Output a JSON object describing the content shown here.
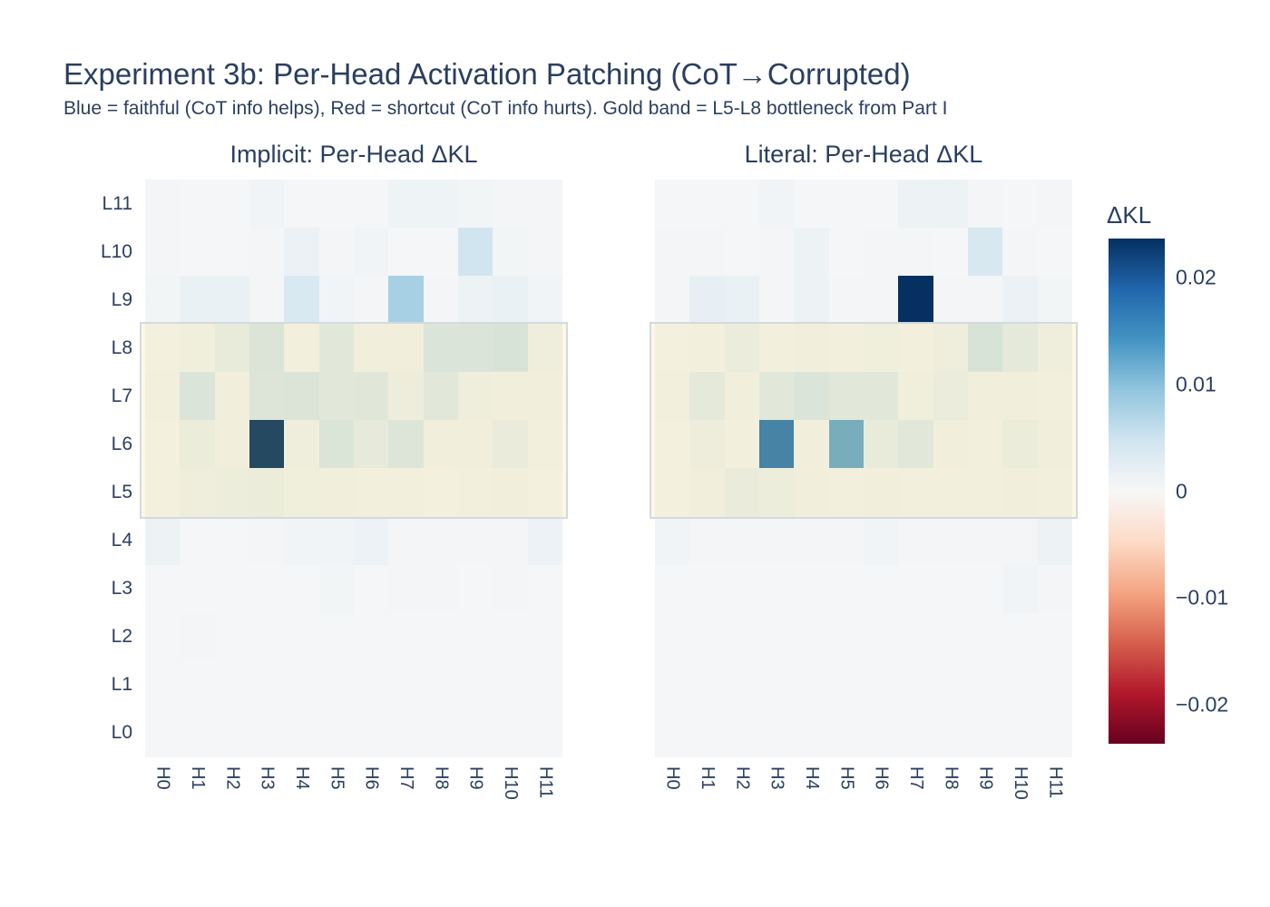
{
  "title": "Experiment 3b: Per-Head Activation Patching (CoT→Corrupted)",
  "subtitle": "Blue = faithful (CoT info helps), Red = shortcut (CoT info hurts). Gold band = L5-L8 bottleneck from Part I",
  "colors": {
    "text": "#2a3f5f",
    "background": "#ffffff",
    "gold_band_fill": "rgba(231,200,44,0.13)",
    "gold_band_border": "#d3d9e1",
    "colorscale_max_blue": "#053061",
    "colorscale_min_red": "#67001f"
  },
  "chart_data": {
    "type": "heatmap",
    "x_labels": [
      "H0",
      "H1",
      "H2",
      "H3",
      "H4",
      "H5",
      "H6",
      "H7",
      "H8",
      "H9",
      "H10",
      "H11"
    ],
    "y_labels_top_to_bottom": [
      "L11",
      "L10",
      "L9",
      "L8",
      "L7",
      "L6",
      "L5",
      "L4",
      "L3",
      "L2",
      "L1",
      "L0"
    ],
    "colorscale": "RdBu (positive = blue, negative = red)",
    "zmin": -0.0237,
    "zmax": 0.0237,
    "gold_band": {
      "rows": "L5-L8",
      "meaning": "L5-L8 bottleneck from Part I"
    },
    "colorbar": {
      "title": "ΔKL",
      "tick_labels": [
        "0.02",
        "0.01",
        "0",
        "−0.01",
        "−0.02"
      ],
      "tick_values": [
        0.02,
        0.01,
        0,
        -0.01,
        -0.02
      ]
    },
    "panels": [
      {
        "title": "Implicit: Per-Head ΔKL",
        "values": [
          [
            0.0004,
            0.0003,
            0.0002,
            0.0009,
            0.0003,
            0.0003,
            0.0002,
            0.0011,
            0.0011,
            0.0006,
            0.0004,
            0.0005
          ],
          [
            0.0005,
            0.0003,
            0.0002,
            0.0005,
            0.0015,
            0.0004,
            0.0007,
            0.0003,
            0.0003,
            0.0048,
            0.0006,
            0.0004
          ],
          [
            0.0006,
            0.0017,
            0.0017,
            0.0004,
            0.0038,
            0.0008,
            0.0005,
            0.0078,
            0.0005,
            0.0012,
            0.0017,
            0.0008
          ],
          [
            0.0003,
            0.0006,
            0.0017,
            0.0038,
            0.0004,
            0.0026,
            0.0005,
            0.0005,
            0.0037,
            0.0037,
            0.0041,
            0.0008
          ],
          [
            0.0004,
            0.0036,
            0.0005,
            0.0034,
            0.0038,
            0.0027,
            0.003,
            0.001,
            0.0028,
            0.0007,
            0.0005,
            0.0005
          ],
          [
            0.0002,
            0.0012,
            0.0005,
            0.0232,
            0.0007,
            0.0039,
            0.002,
            0.0035,
            0.0005,
            0.0005,
            0.0015,
            0.0004
          ],
          [
            0.0002,
            0.0009,
            0.0011,
            0.0012,
            0.0006,
            0.0005,
            0.0004,
            0.0004,
            0.0003,
            0.0004,
            0.0005,
            0.0003
          ],
          [
            0.0013,
            0.0003,
            0.0003,
            0.0005,
            0.0007,
            0.0007,
            0.0014,
            0.0004,
            0.0005,
            0.0005,
            0.0004,
            0.0014
          ],
          [
            0.0002,
            0.0002,
            0.0003,
            0.0002,
            0.0003,
            0.0006,
            0.0002,
            0.0004,
            0.0004,
            0.0003,
            0.0005,
            0.0002
          ],
          [
            0.0002,
            0.0005,
            0.0002,
            0.0002,
            0.0002,
            0.0002,
            0.0002,
            0.0003,
            0.0002,
            0.0002,
            0.0002,
            0.0002
          ],
          [
            0.0002,
            0.0002,
            0.0002,
            0.0002,
            0.0002,
            0.0002,
            0.0002,
            0.0002,
            0.0002,
            0.0002,
            0.0002,
            0.0002
          ],
          [
            0.0002,
            0.0002,
            0.0002,
            0.0002,
            0.0003,
            0.0002,
            0.0002,
            0.0002,
            0.0002,
            0.0002,
            0.0002,
            0.0002
          ]
        ]
      },
      {
        "title": "Literal: Per-Head ΔKL",
        "values": [
          [
            0.0003,
            0.0002,
            0.0003,
            0.0007,
            0.0003,
            0.0003,
            0.0003,
            0.0013,
            0.0013,
            0.0005,
            0.0003,
            0.0004
          ],
          [
            0.0004,
            0.0005,
            0.0003,
            0.0004,
            0.0013,
            0.0003,
            0.0004,
            0.0004,
            0.0003,
            0.004,
            0.0004,
            0.0003
          ],
          [
            0.0004,
            0.002,
            0.0017,
            0.0004,
            0.0012,
            0.0005,
            0.0004,
            0.0237,
            0.0005,
            0.0004,
            0.0015,
            0.0006
          ],
          [
            0.0003,
            0.0004,
            0.0014,
            0.0004,
            0.0005,
            0.0004,
            0.0006,
            0.0004,
            0.0008,
            0.0041,
            0.0023,
            0.0009
          ],
          [
            0.0004,
            0.0023,
            0.0005,
            0.0027,
            0.0036,
            0.0026,
            0.0027,
            0.0006,
            0.0014,
            0.0005,
            0.0005,
            0.0004
          ],
          [
            0.0003,
            0.001,
            0.0004,
            0.017,
            0.0005,
            0.012,
            0.0019,
            0.0029,
            0.0005,
            0.0004,
            0.0013,
            0.0005
          ],
          [
            0.0003,
            0.0005,
            0.0015,
            0.0011,
            0.0005,
            0.0004,
            0.0005,
            0.0004,
            0.0004,
            0.0004,
            0.0005,
            0.0004
          ],
          [
            0.0007,
            0.0004,
            0.0004,
            0.0004,
            0.0005,
            0.0005,
            0.0008,
            0.0004,
            0.0004,
            0.0004,
            0.0004,
            0.0012
          ],
          [
            0.0002,
            0.0003,
            0.0003,
            0.0002,
            0.0003,
            0.0003,
            0.0002,
            0.0003,
            0.0003,
            0.0003,
            0.0008,
            0.0004
          ],
          [
            0.0002,
            0.0003,
            0.0002,
            0.0002,
            0.0002,
            0.0002,
            0.0002,
            0.0002,
            0.0002,
            0.0002,
            0.0002,
            0.0002
          ],
          [
            0.0002,
            0.0002,
            0.0002,
            0.0002,
            0.0002,
            0.0002,
            0.0002,
            0.0002,
            0.0002,
            0.0002,
            0.0002,
            0.0002
          ],
          [
            0.0002,
            0.0002,
            0.0002,
            0.0002,
            0.0002,
            0.0002,
            0.0002,
            0.0002,
            0.0002,
            0.0002,
            0.0002,
            0.0002
          ]
        ]
      }
    ]
  }
}
